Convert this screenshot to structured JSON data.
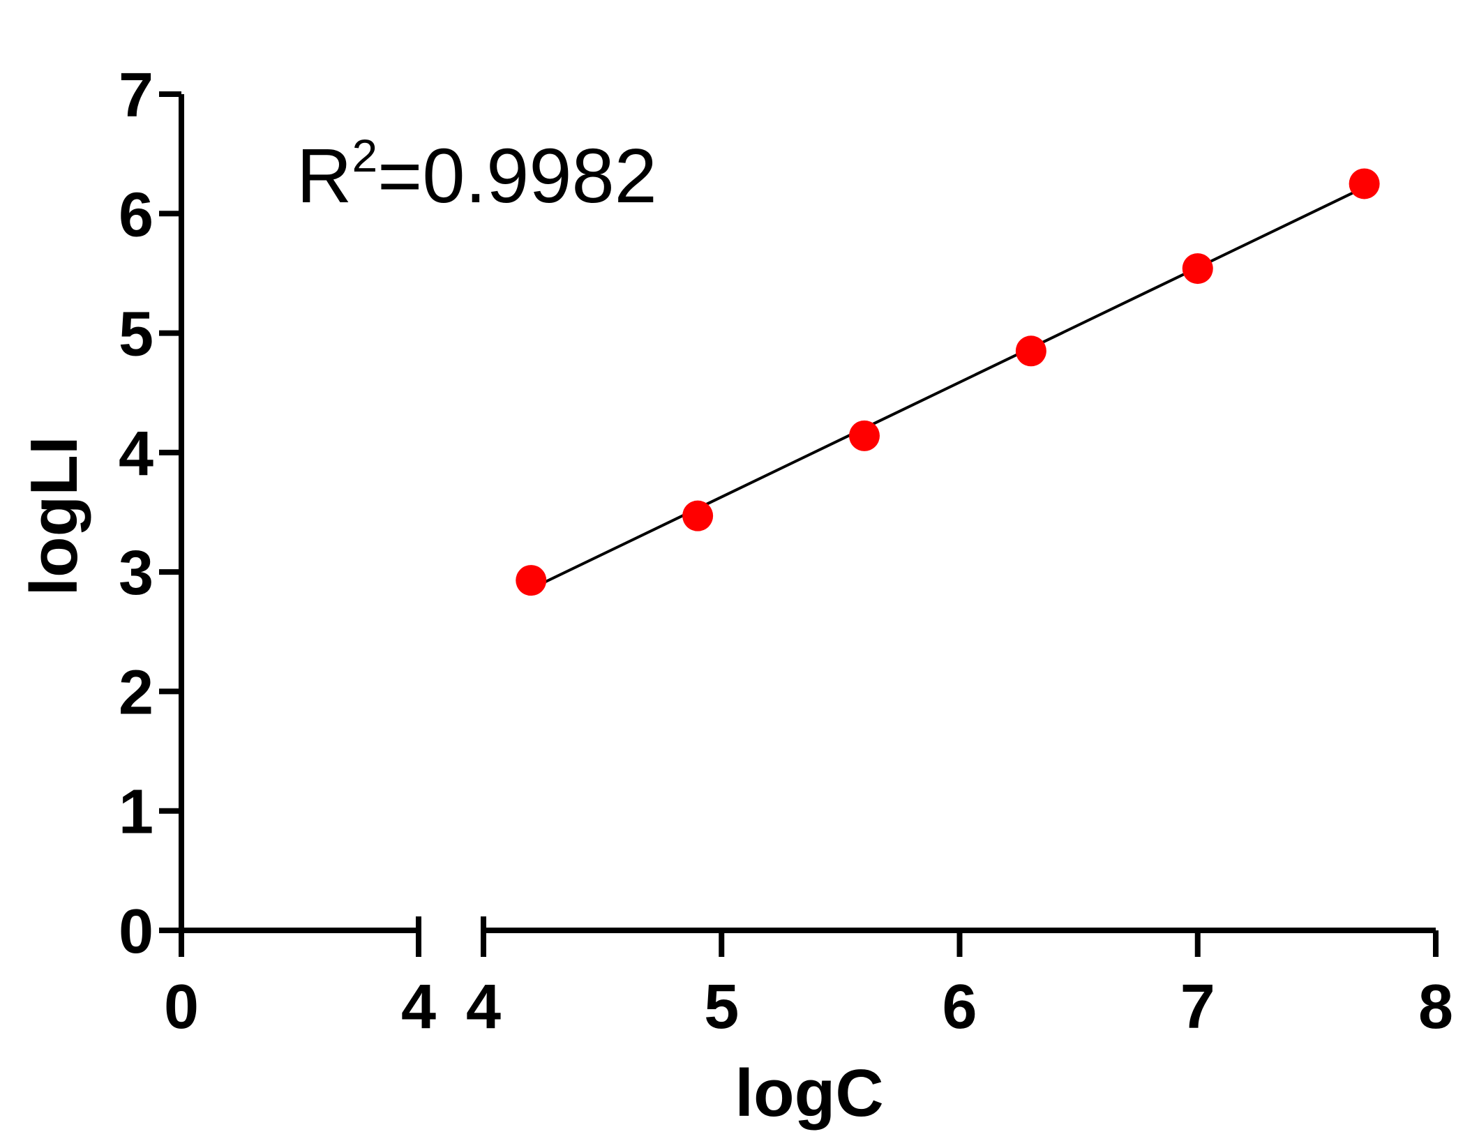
{
  "chart_data": {
    "type": "scatter",
    "annotation": {
      "base": "R",
      "superscript": "2",
      "value": "=0.9982"
    },
    "xlabel": "logC",
    "ylabel": "logLI",
    "x_axis_break": {
      "segment1": {
        "range": [
          0,
          4
        ],
        "ticks": [
          0,
          4
        ],
        "tick_labels": [
          "0",
          "4"
        ]
      },
      "segment2": {
        "range": [
          4,
          8
        ],
        "ticks": [
          4,
          5,
          6,
          7,
          8
        ],
        "tick_labels": [
          "4",
          "5",
          "6",
          "7",
          "8"
        ]
      }
    },
    "ylim": [
      0,
      7
    ],
    "yticks": [
      0,
      1,
      2,
      3,
      4,
      5,
      6,
      7
    ],
    "ytick_labels": [
      "0",
      "1",
      "2",
      "3",
      "4",
      "5",
      "6",
      "7"
    ],
    "grid": false,
    "series": [
      {
        "x": [
          4.2,
          4.9,
          5.6,
          6.3,
          7.0,
          7.7
        ],
        "y": [
          2.93,
          3.47,
          4.14,
          4.85,
          5.54,
          6.25
        ],
        "color": "#ff0000"
      }
    ],
    "fit_line": {
      "x": [
        4.2,
        7.7
      ],
      "y": [
        2.86,
        6.22
      ],
      "color": "#000000"
    }
  }
}
